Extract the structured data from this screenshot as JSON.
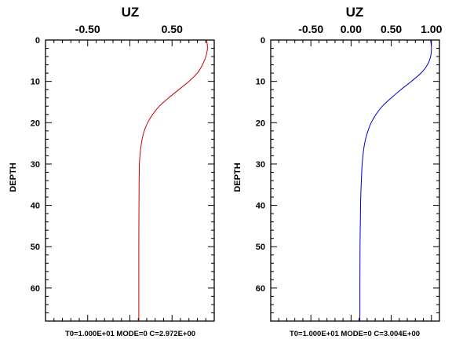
{
  "chart_data": [
    {
      "type": "line",
      "title": "UZ",
      "xlabel": "",
      "ylabel": "DEPTH",
      "x_ticks": [
        "-0.50",
        "0.50"
      ],
      "x_tick_values": [
        -0.5,
        0.5
      ],
      "xlim": [
        -1.0,
        1.0
      ],
      "y_ticks": [
        "0",
        "10",
        "20",
        "30",
        "40",
        "50",
        "60"
      ],
      "ylim": [
        0,
        68
      ],
      "y_inverted": true,
      "caption": "T0=1.000E+01 MODE=0 C=2.972E+00",
      "color": "#cc0000",
      "series": [
        {
          "x": [
            0.91,
            0.92,
            0.9,
            0.86,
            0.8,
            0.7,
            0.58,
            0.46,
            0.35,
            0.27,
            0.21,
            0.17,
            0.145,
            0.13,
            0.12,
            0.113,
            0.11,
            0.108,
            0.106,
            0.106,
            0.106
          ],
          "y": [
            0,
            2,
            4,
            6,
            8,
            10,
            12,
            14,
            16,
            18,
            20,
            22,
            24,
            26,
            28,
            30,
            34,
            40,
            50,
            60,
            68
          ]
        }
      ]
    },
    {
      "type": "line",
      "title": "UZ",
      "xlabel": "",
      "ylabel": "DEPTH",
      "x_ticks": [
        "-0.50",
        "0.00",
        "0.50",
        "1.00"
      ],
      "x_tick_values": [
        -0.5,
        0.0,
        0.5,
        1.0
      ],
      "xlim": [
        -1.0,
        1.1
      ],
      "y_ticks": [
        "0",
        "10",
        "20",
        "30",
        "40",
        "50",
        "60"
      ],
      "ylim": [
        0,
        68
      ],
      "y_inverted": true,
      "caption": "T0=1.000E+01 MODE=0 C=3.004E+00",
      "color": "#0000cc",
      "series": [
        {
          "x": [
            0.99,
            1.0,
            0.99,
            0.95,
            0.87,
            0.75,
            0.62,
            0.5,
            0.39,
            0.31,
            0.25,
            0.21,
            0.18,
            0.16,
            0.148,
            0.138,
            0.128,
            0.118,
            0.112,
            0.11,
            0.11
          ],
          "y": [
            0,
            2,
            4,
            6,
            8,
            10,
            12,
            14,
            16,
            18,
            20,
            22,
            24,
            26,
            28,
            30,
            34,
            40,
            50,
            60,
            68
          ]
        }
      ]
    }
  ]
}
